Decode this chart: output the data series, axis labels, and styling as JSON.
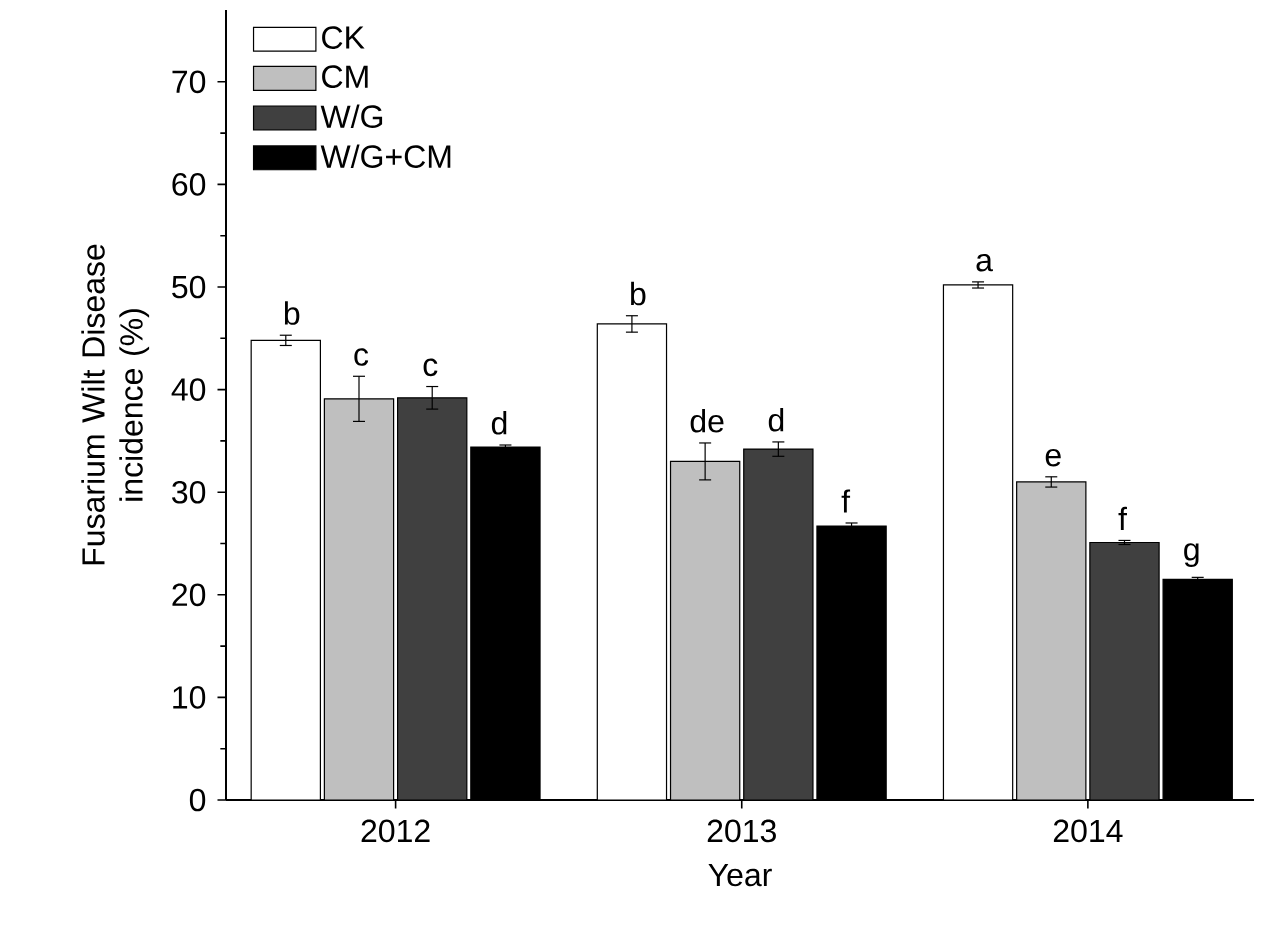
{
  "chart_data": {
    "type": "bar",
    "xlabel": "Year",
    "ylabel": "Fusarium Wilt Disease incidence (%)",
    "categories": [
      "2012",
      "2013",
      "2014"
    ],
    "series": [
      {
        "name": "CK",
        "color": "#ffffff",
        "values": [
          44.8,
          46.4,
          50.2
        ],
        "errors": [
          0.5,
          0.8,
          0.3
        ]
      },
      {
        "name": "CM",
        "color": "#bfbfbf",
        "values": [
          39.1,
          33.0,
          31.0
        ],
        "errors": [
          2.2,
          1.8,
          0.5
        ]
      },
      {
        "name": "W/G",
        "color": "#404040",
        "values": [
          39.2,
          34.2,
          25.1
        ],
        "errors": [
          1.1,
          0.7,
          0.2
        ]
      },
      {
        "name": "W/G+CM",
        "color": "#000000",
        "values": [
          34.4,
          26.7,
          21.5
        ],
        "errors": [
          0.2,
          0.3,
          0.2
        ]
      }
    ],
    "annotations": [
      "b",
      "c",
      "c",
      "d",
      "b",
      "de",
      "d",
      "f",
      "a",
      "e",
      "f",
      "g"
    ],
    "ylim": [
      0,
      77
    ],
    "yticks": [
      0,
      10,
      20,
      30,
      40,
      50,
      60,
      70
    ],
    "grid": false,
    "legend": "top left"
  }
}
